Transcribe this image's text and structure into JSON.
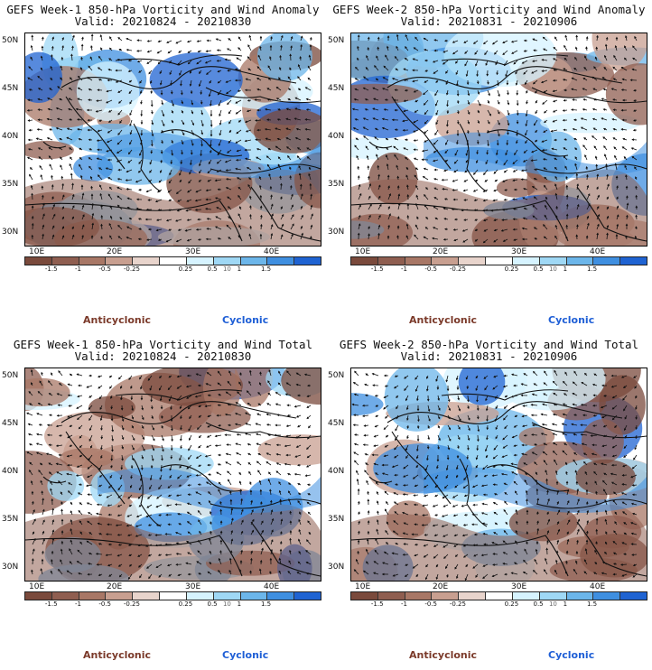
{
  "panels": [
    {
      "id": "p1",
      "title": "GEFS Week-1 850-hPa Vorticity and Wind Anomaly",
      "valid": "Valid: 20210824 - 20210830"
    },
    {
      "id": "p2",
      "title": "GEFS Week-2 850-hPa Vorticity and Wind Anomaly",
      "valid": "Valid: 20210831 - 20210906"
    },
    {
      "id": "p3",
      "title": "GEFS Week-1 850-hPa Vorticity and Wind Total",
      "valid": "Valid: 20210824 - 20210830"
    },
    {
      "id": "p4",
      "title": "GEFS Week-2 850-hPa Vorticity and Wind Total",
      "valid": "Valid: 20210831 - 20210906"
    }
  ],
  "axes": {
    "lat_labels": [
      "50N",
      "45N",
      "40N",
      "35N",
      "30N"
    ],
    "lon_labels": [
      "10E",
      "20E",
      "30E",
      "40E"
    ]
  },
  "colorbar": {
    "ticks": [
      "-1.5",
      "-1",
      "-0.5",
      "-0.25",
      "0.25",
      "0.5",
      "1",
      "1.5"
    ],
    "scale_label": "10",
    "colors": [
      "#7a4a3c",
      "#8f5e50",
      "#a87766",
      "#c89f90",
      "#e8d4cc",
      "#ffffff",
      "#d6f3ff",
      "#9fd8f5",
      "#6cb6ea",
      "#3f8fe0",
      "#1f63d2"
    ]
  },
  "legend": {
    "anticyclonic": "Anticyclonic",
    "cyclonic": "Cyclonic"
  }
}
